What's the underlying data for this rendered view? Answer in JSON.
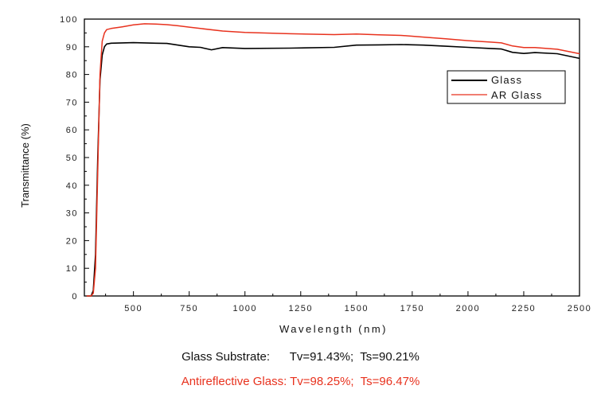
{
  "chart_data": {
    "type": "line",
    "xlabel": "Wavelength (nm)",
    "ylabel": "Transmittance (%)",
    "xlim": [
      280,
      2500
    ],
    "ylim": [
      0,
      100
    ],
    "x_ticks": [
      500,
      750,
      1000,
      1250,
      1500,
      1750,
      2000,
      2250,
      2500
    ],
    "y_ticks": [
      0,
      10,
      20,
      30,
      40,
      50,
      60,
      70,
      80,
      90,
      100
    ],
    "grid": false,
    "legend_position": "top-right",
    "series": [
      {
        "name": "Glass",
        "color": "#000000",
        "x": [
          290,
          310,
          320,
          330,
          340,
          350,
          360,
          370,
          380,
          400,
          450,
          500,
          600,
          650,
          700,
          750,
          800,
          850,
          900,
          1000,
          1200,
          1400,
          1500,
          1600,
          1700,
          1800,
          1900,
          2000,
          2100,
          2150,
          2200,
          2250,
          2300,
          2400,
          2500
        ],
        "y": [
          0,
          0,
          2,
          15,
          50,
          78,
          87,
          90,
          91,
          91.3,
          91.4,
          91.5,
          91.3,
          91.2,
          90.6,
          90,
          89.8,
          88.9,
          89.7,
          89.4,
          89.5,
          89.8,
          90.6,
          90.7,
          90.8,
          90.6,
          90.2,
          89.8,
          89.4,
          89.2,
          88,
          87.6,
          87.9,
          87.5,
          85.8
        ]
      },
      {
        "name": "AR Glass",
        "color": "#e8321e",
        "x": [
          290,
          310,
          320,
          330,
          340,
          350,
          360,
          370,
          380,
          400,
          450,
          500,
          550,
          600,
          650,
          700,
          750,
          800,
          900,
          1000,
          1200,
          1400,
          1500,
          1600,
          1700,
          1800,
          1900,
          2000,
          2100,
          2150,
          2200,
          2250,
          2300,
          2400,
          2500
        ],
        "y": [
          0,
          0,
          1,
          10,
          45,
          80,
          92,
          95,
          96.2,
          96.6,
          97.2,
          97.9,
          98.3,
          98.2,
          98,
          97.6,
          97.1,
          96.6,
          95.7,
          95.2,
          94.7,
          94.4,
          94.6,
          94.3,
          94.1,
          93.5,
          92.9,
          92.2,
          91.7,
          91.4,
          90.3,
          89.7,
          89.7,
          89.1,
          87.5
        ]
      }
    ]
  },
  "captions": {
    "glass": "Glass Substrate:      Tv=91.43%;  Ts=90.21%",
    "ar": "Antireflective Glass: Tv=98.25%;  Ts=96.47%"
  }
}
